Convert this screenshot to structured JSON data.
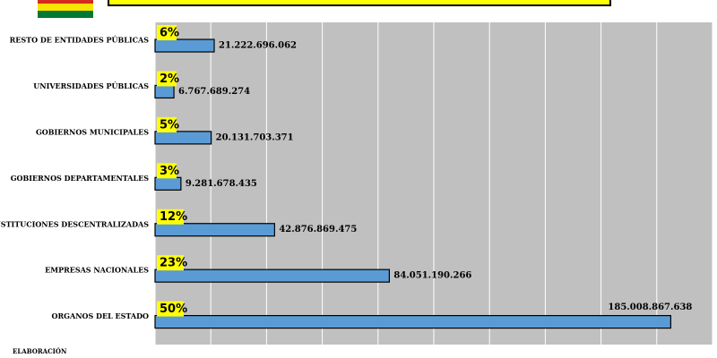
{
  "chart_data": {
    "type": "bar",
    "orientation": "horizontal",
    "categories": [
      "RESTO DE ENTIDADES PÚBLICAS",
      "UNIVERSIDADES PÚBLICAS",
      "GOBIERNOS MUNICIPALES",
      "GOBIERNOS DEPARTAMENTALES",
      "INSTITUCIONES DESCENTRALIZADAS",
      "EMPRESAS NACIONALES",
      "ORGANOS DEL ESTADO"
    ],
    "values": [
      21222696062,
      6767689274,
      20131703371,
      9281678435,
      42876869475,
      84051190266,
      185008867638
    ],
    "value_labels": [
      "21.222.696.062",
      "6.767.689.274",
      "20.131.703.371",
      "9.281.678.435",
      "42.876.869.475",
      "84.051.190.266",
      "185.008.867.638"
    ],
    "share_labels": [
      "6%",
      "2%",
      "5%",
      "3%",
      "12%",
      "23%",
      "50%"
    ],
    "color": "#5b9bd5",
    "xlim": [
      0,
      200000000000
    ],
    "xticks": [
      0,
      20000000000,
      40000000000,
      60000000000,
      80000000000,
      100000000000,
      120000000000,
      140000000000,
      160000000000,
      180000000000,
      200000000000
    ],
    "grid": true,
    "footer": "ELABORACIÓN"
  }
}
